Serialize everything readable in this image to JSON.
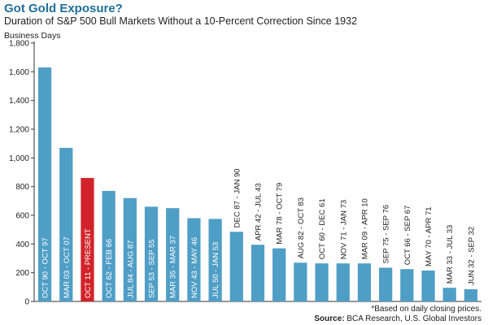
{
  "header": {
    "title": "Got Gold Exposure?",
    "subtitle": "Duration of S&P 500 Bull Markets Without a 10-Percent Correction Since 1932"
  },
  "footer": {
    "footnote": "*Based on daily closing prices.",
    "source_label": "Source:",
    "source_text": "BCA Research, U.S. Global Investors"
  },
  "colors": {
    "bar": "#4f9ec6",
    "highlight": "#d2232a",
    "axis": "#333333",
    "text": "#222222"
  },
  "chart_data": {
    "type": "bar",
    "title": "Duration of S&P 500 Bull Markets Without a 10-Percent Correction Since 1932",
    "ylabel": "Business Days",
    "xlabel": "",
    "ylim": [
      0,
      1800
    ],
    "yticks": [
      0,
      200,
      400,
      600,
      800,
      1000,
      1200,
      1400,
      1600,
      1800
    ],
    "ytick_labels": [
      "0",
      "200",
      "400",
      "600",
      "800",
      "1,000",
      "1,200",
      "1,400",
      "1,600",
      "1,800"
    ],
    "grid": false,
    "categories": [
      "OCT 90 - OCT 97",
      "MAR 03 - OCT 07",
      "OCT 11 - PRESENT",
      "OCT 62 - FEB 66",
      "JUL 84 - AUG 87",
      "SEP 53 - SEP 55",
      "MAR 35 - MAR 37",
      "NOV 43 - MAY 46",
      "JUL 50 - JAN 53",
      "DEC 87 - JAN 90",
      "APR 42 - JUL 43",
      "MAR 78 - OCT 79",
      "AUG 82 - OCT 83",
      "OCT 60 - DEC 61",
      "NOV 71 - JAN 73",
      "MAR 09 - APR 10",
      "SEP 75 - SEP 76",
      "OCT 66 - SEP 67",
      "MAY 70 - APR 71",
      "MAR 33 - JUL 33",
      "JUN 32 - SEP 32"
    ],
    "values": [
      1630,
      1070,
      860,
      770,
      720,
      660,
      650,
      580,
      575,
      485,
      395,
      370,
      270,
      265,
      265,
      265,
      235,
      225,
      215,
      95,
      85
    ],
    "highlight_index": 2
  }
}
